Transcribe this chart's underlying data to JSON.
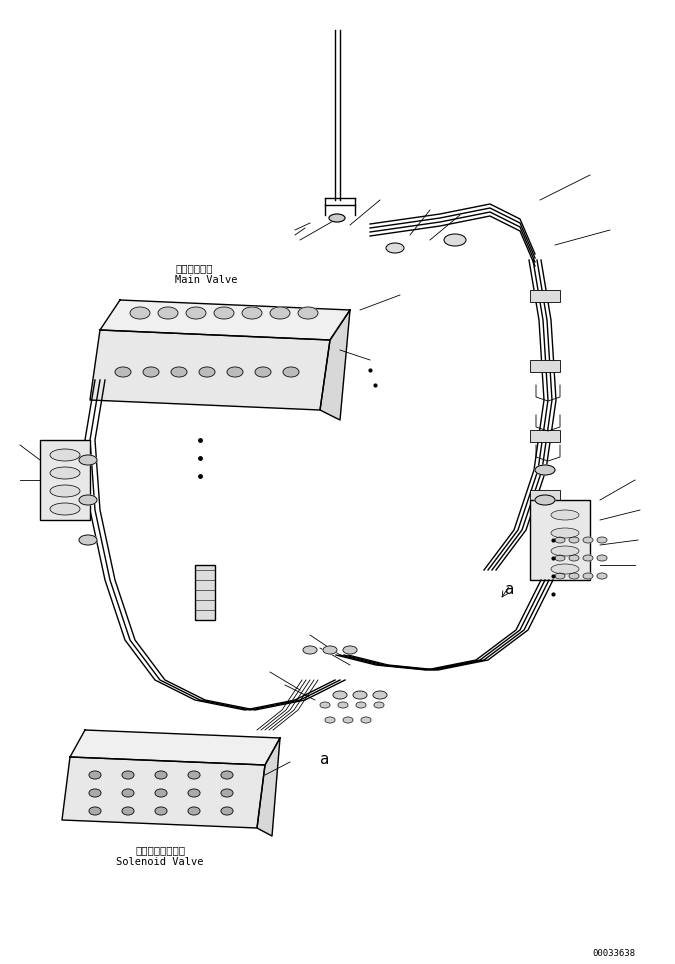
{
  "bg_color": "#ffffff",
  "line_color": "#000000",
  "fig_width": 6.75,
  "fig_height": 9.64,
  "dpi": 100,
  "label_main_valve_jp": "メインバルブ",
  "label_main_valve_en": "Main Valve",
  "label_solenoid_jp": "ソレノイドバルブ",
  "label_solenoid_en": "Solenoid Valve",
  "label_part_number": "00033638",
  "label_a1": "a",
  "label_a2": "a"
}
